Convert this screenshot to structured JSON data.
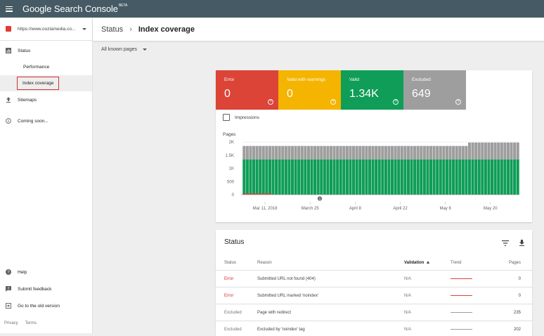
{
  "app": {
    "title": "Google Search Console",
    "badge": "BETA"
  },
  "sidebar": {
    "property_url": "https://www.oozlamedia.co...",
    "items": [
      {
        "label": "Status"
      },
      {
        "label": "Performance"
      },
      {
        "label": "Index coverage"
      },
      {
        "label": "Sitemaps"
      },
      {
        "label": "Coming soon..."
      }
    ],
    "bottom_items": [
      {
        "label": "Help"
      },
      {
        "label": "Submit feedback"
      },
      {
        "label": "Go to the old version"
      }
    ],
    "footer": {
      "privacy": "Privacy",
      "terms": "Terms"
    }
  },
  "header": {
    "crumb_parent": "Status",
    "crumb_sep": "›",
    "crumb_current": "Index coverage"
  },
  "filter": {
    "label": "All known pages"
  },
  "tiles": [
    {
      "label": "Error",
      "value": "0",
      "color": "#db4437"
    },
    {
      "label": "Valid with warnings",
      "value": "0",
      "color": "#f4b400"
    },
    {
      "label": "Valid",
      "value": "1.34K",
      "color": "#0f9d58"
    },
    {
      "label": "Excluded",
      "value": "649",
      "color": "#9e9e9e"
    }
  ],
  "impressions_label": "Impressions",
  "chart_data": {
    "type": "bar",
    "ylabel": "Pages",
    "yticks": [
      "2K",
      "1.5K",
      "1K",
      "500",
      "0"
    ],
    "ylim": [
      0,
      2000
    ],
    "xticks": [
      "Mar 11, 2018",
      "March 25",
      "April 8",
      "April 22",
      "May 6",
      "May 20"
    ],
    "annotation": "1",
    "series": [
      {
        "color": "#0f9d58",
        "segments": [
          {
            "days": 70,
            "value": 1340
          },
          {
            "days": 16,
            "value": 1340
          }
        ]
      },
      {
        "color": "#9e9e9e",
        "segments": [
          {
            "days": 70,
            "value": 510
          },
          {
            "days": 16,
            "value": 640
          }
        ]
      },
      {
        "color": "#db4437",
        "segments": [
          {
            "days": 9,
            "value": 40
          }
        ]
      }
    ]
  },
  "status": {
    "title": "Status",
    "columns": {
      "status": "Status",
      "reason": "Reason",
      "validation": "Validation",
      "trend": "Trend",
      "pages": "Pages"
    },
    "rows": [
      {
        "status": "Error",
        "reason": "Submitted URL not found (404)",
        "validation": "N/A",
        "pages": "0",
        "kind": "err"
      },
      {
        "status": "Error",
        "reason": "Submitted URL marked 'noindex'",
        "validation": "N/A",
        "pages": "0",
        "kind": "err"
      },
      {
        "status": "Excluded",
        "reason": "Page with redirect",
        "validation": "N/A",
        "pages": "235",
        "kind": "excl"
      },
      {
        "status": "Excluded",
        "reason": "Excluded by 'noindex' tag",
        "validation": "N/A",
        "pages": "202",
        "kind": "excl"
      }
    ]
  }
}
